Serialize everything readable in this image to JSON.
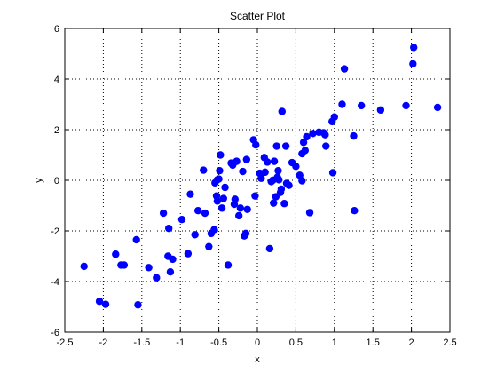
{
  "chart_data": {
    "type": "scatter",
    "title": "Scatter Plot",
    "xlabel": "x",
    "ylabel": "y",
    "xlim": [
      -2.5,
      2.5
    ],
    "ylim": [
      -6,
      6
    ],
    "xticks": [
      "-2.5",
      "-2",
      "-1.5",
      "-1",
      "-0.5",
      "0",
      "0.5",
      "1",
      "1.5",
      "2",
      "2.5"
    ],
    "yticks": [
      "-6",
      "-4",
      "-2",
      "0",
      "2",
      "4",
      "6"
    ],
    "xtick_values": [
      -2.5,
      -2,
      -1.5,
      -1,
      -0.5,
      0,
      0.5,
      1,
      1.5,
      2,
      2.5
    ],
    "ytick_values": [
      -6,
      -4,
      -2,
      0,
      2,
      4,
      6
    ],
    "grid": true,
    "series_color": "#0000ff",
    "x": [
      -2.25,
      -2.05,
      -1.97,
      -1.84,
      -1.77,
      -1.73,
      -1.57,
      -1.55,
      -1.41,
      -1.31,
      -1.22,
      -1.16,
      -1.13,
      -1.15,
      -1.1,
      -0.98,
      -0.9,
      -0.87,
      -0.81,
      -0.77,
      -0.7,
      -0.68,
      -0.63,
      -0.6,
      -0.56,
      -0.53,
      -0.55,
      -0.52,
      -0.5,
      -0.48,
      -0.49,
      -0.46,
      -0.44,
      -0.42,
      -0.38,
      -0.34,
      -0.32,
      -0.3,
      -0.27,
      -0.24,
      -0.22,
      -0.19,
      -0.17,
      -0.15,
      -0.14,
      -0.13,
      -0.05,
      -0.03,
      -0.02,
      0.05,
      0.1,
      0.13,
      0.16,
      0.2,
      0.22,
      0.24,
      0.25,
      0.27,
      0.28,
      0.3,
      0.31,
      0.32,
      0.35,
      0.37,
      0.41,
      0.45,
      0.5,
      0.55,
      0.58,
      0.6,
      0.62,
      0.64,
      0.68,
      0.72,
      0.8,
      0.86,
      0.88,
      0.89,
      0.97,
      0.98,
      1.0,
      1.1,
      1.13,
      1.25,
      1.26,
      1.35,
      1.6,
      1.93,
      2.02,
      2.03,
      2.34,
      0.26,
      0.21,
      0.09,
      -0.52,
      0.58,
      0.18,
      -0.29,
      0.03,
      0.38
    ],
    "y": [
      -3.4,
      -4.78,
      -4.9,
      -2.92,
      -3.35,
      -3.35,
      -2.35,
      -4.92,
      -3.45,
      -3.85,
      -1.3,
      -3.0,
      -3.62,
      -1.9,
      -3.12,
      -1.55,
      -2.9,
      -0.55,
      -2.15,
      -1.2,
      0.4,
      -1.3,
      -2.62,
      -2.1,
      -1.95,
      -0.62,
      -0.1,
      -0.82,
      0.05,
      1.0,
      0.38,
      -1.1,
      -0.72,
      -0.28,
      -3.35,
      0.68,
      0.6,
      -0.95,
      0.75,
      -1.4,
      -1.1,
      0.35,
      -2.2,
      -2.1,
      0.82,
      -1.15,
      1.6,
      -0.62,
      1.4,
      0.08,
      0.32,
      0.72,
      -2.7,
      0.0,
      0.75,
      -0.65,
      1.35,
      0.38,
      0.02,
      -0.48,
      -0.35,
      2.72,
      -0.92,
      1.35,
      -0.2,
      0.7,
      0.55,
      0.2,
      1.05,
      1.5,
      1.18,
      1.72,
      -1.28,
      1.85,
      1.9,
      1.88,
      1.8,
      1.35,
      2.32,
      0.3,
      2.5,
      3.0,
      4.4,
      1.75,
      -1.2,
      2.95,
      2.78,
      2.95,
      4.6,
      5.25,
      2.88,
      0.12,
      -0.9,
      0.9,
      0.02,
      -0.02,
      -0.05,
      -0.75,
      0.28,
      -0.12
    ]
  }
}
